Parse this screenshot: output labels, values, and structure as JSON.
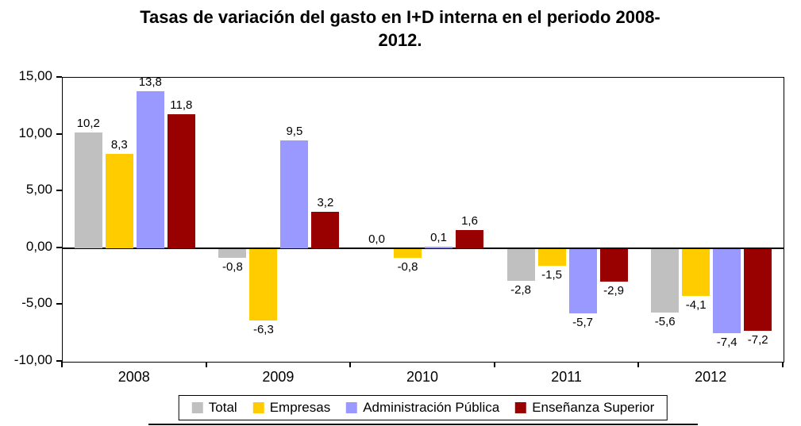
{
  "chart_data": {
    "type": "bar",
    "title": "Tasas de variación del gasto en I+D interna en el periodo 2008-2012.",
    "categories": [
      "2008",
      "2009",
      "2010",
      "2011",
      "2012"
    ],
    "series": [
      {
        "name": "Total",
        "color": "#C0C0C0",
        "values": [
          10.2,
          -0.8,
          0.0,
          -2.8,
          -5.6
        ],
        "value_labels": [
          "10,2",
          "-0,8",
          "0,0",
          "-2,8",
          "-5,6"
        ]
      },
      {
        "name": "Empresas",
        "color": "#FFCC00",
        "values": [
          8.3,
          -6.3,
          -0.8,
          -1.5,
          -4.1
        ],
        "value_labels": [
          "8,3",
          "-6,3",
          "-0,8",
          "-1,5",
          "-4,1"
        ]
      },
      {
        "name": "Administración Pública",
        "color": "#9999FF",
        "values": [
          13.8,
          9.5,
          0.1,
          -5.7,
          -7.4
        ],
        "value_labels": [
          "13,8",
          "9,5",
          "0,1",
          "-5,7",
          "-7,4"
        ]
      },
      {
        "name": "Enseñanza Superior",
        "color": "#990000",
        "values": [
          11.8,
          3.2,
          1.6,
          -2.9,
          -7.2
        ],
        "value_labels": [
          "11,8",
          "3,2",
          "1,6",
          "-2,9",
          "-7,2"
        ]
      }
    ],
    "ylim": [
      -10,
      15
    ],
    "yticks": [
      15,
      10,
      5,
      0,
      -5,
      -10
    ],
    "ytick_labels": [
      "15,00",
      "10,00",
      "5,00",
      "0,00",
      "-5,00",
      "-10,00"
    ],
    "xlabel": "",
    "ylabel": "",
    "grid": false,
    "legend_position": "bottom"
  }
}
